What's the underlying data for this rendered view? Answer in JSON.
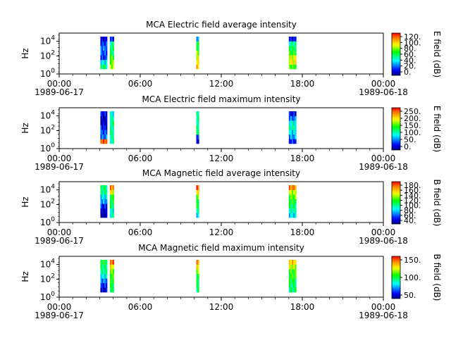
{
  "chart_data": [
    {
      "type": "heatmap",
      "title": "MCA  Electric field average intensity",
      "ylabel": "Hz",
      "yticks": [
        {
          "base": "10",
          "exp": "0"
        },
        {
          "base": "10",
          "exp": "2"
        },
        {
          "base": "10",
          "exp": "4"
        }
      ],
      "xticks": [
        "00:00",
        "06:00",
        "12:00",
        "18:00",
        "00:00"
      ],
      "xdates": [
        "1989-06-17",
        "1989-06-18"
      ],
      "colorbar": {
        "label": "E field (dB)",
        "ticks": [
          "120.",
          "100.",
          "80.",
          "60.",
          "40.",
          "20.",
          "0."
        ],
        "range": [
          0,
          130
        ]
      },
      "bursts": [
        {
          "start_hours": 3.05,
          "end_hours": 3.55,
          "profile": [
            10,
            20,
            30,
            25,
            20,
            45,
            60
          ]
        },
        {
          "start_hours": 3.75,
          "end_hours": 4.05,
          "profile": [
            20,
            55,
            60,
            60,
            75,
            80,
            85
          ]
        },
        {
          "start_hours": 10.15,
          "end_hours": 10.35,
          "profile": [
            30,
            70,
            70,
            80,
            90,
            100,
            105
          ]
        },
        {
          "start_hours": 17.0,
          "end_hours": 17.55,
          "profile": [
            15,
            55,
            65,
            70,
            90,
            95,
            75
          ]
        }
      ]
    },
    {
      "type": "heatmap",
      "title": "MCA  Electric field maximum intensity",
      "ylabel": "Hz",
      "yticks": [
        {
          "base": "10",
          "exp": "0"
        },
        {
          "base": "10",
          "exp": "2"
        },
        {
          "base": "10",
          "exp": "4"
        }
      ],
      "xticks": [
        "00:00",
        "06:00",
        "12:00",
        "18:00",
        "00:00"
      ],
      "xdates": [
        "1989-06-17",
        "1989-06-18"
      ],
      "colorbar": {
        "label": "E field (dB)",
        "ticks": [
          "250.",
          "200.",
          "150.",
          "100.",
          "50.",
          "0."
        ],
        "range": [
          0,
          270
        ]
      },
      "bursts": [
        {
          "start_hours": 3.05,
          "end_hours": 3.55,
          "profile": [
            30,
            15,
            20,
            35,
            50,
            60,
            250
          ]
        },
        {
          "start_hours": 3.75,
          "end_hours": 4.05,
          "profile": [
            95,
            110,
            120,
            110,
            120,
            115,
            110
          ]
        },
        {
          "start_hours": 10.15,
          "end_hours": 10.35,
          "profile": [
            110,
            115,
            120,
            125,
            120,
            40,
            30
          ]
        },
        {
          "start_hours": 17.0,
          "end_hours": 17.55,
          "profile": [
            30,
            60,
            100,
            110,
            90,
            70,
            40
          ]
        }
      ]
    },
    {
      "type": "heatmap",
      "title": "MCA  Magnetic field average intensity",
      "ylabel": "Hz",
      "yticks": [
        {
          "base": "10",
          "exp": "0"
        },
        {
          "base": "10",
          "exp": "2"
        },
        {
          "base": "10",
          "exp": "4"
        }
      ],
      "xticks": [
        "00:00",
        "06:00",
        "12:00",
        "18:00",
        "00:00"
      ],
      "xdates": [
        "1989-06-17",
        "1989-06-18"
      ],
      "colorbar": {
        "label": "B field (dB)",
        "ticks": [
          "180.",
          "160.",
          "140.",
          "120.",
          "100.",
          "80.",
          "60.",
          "40."
        ],
        "range": [
          40,
          190
        ]
      },
      "bursts": [
        {
          "start_hours": 3.05,
          "end_hours": 3.55,
          "profile": [
            110,
            105,
            90,
            80,
            60,
            50,
            45
          ]
        },
        {
          "start_hours": 3.75,
          "end_hours": 4.05,
          "profile": [
            170,
            150,
            120,
            115,
            110,
            95,
            100
          ]
        },
        {
          "start_hours": 10.15,
          "end_hours": 10.35,
          "profile": [
            180,
            150,
            130,
            120,
            115,
            100,
            90
          ]
        },
        {
          "start_hours": 17.0,
          "end_hours": 17.55,
          "profile": [
            170,
            140,
            130,
            120,
            110,
            100,
            90
          ]
        }
      ]
    },
    {
      "type": "heatmap",
      "title": "MCA  Magnetic field maximum intensity",
      "ylabel": "Hz",
      "yticks": [
        {
          "base": "10",
          "exp": "0"
        },
        {
          "base": "10",
          "exp": "2"
        },
        {
          "base": "10",
          "exp": "4"
        }
      ],
      "xticks": [
        "00:00",
        "06:00",
        "12:00",
        "18:00",
        "00:00"
      ],
      "xdates": [
        "1989-06-17",
        "1989-06-18"
      ],
      "colorbar": {
        "label": "B field (dB)",
        "ticks": [
          "150.",
          "100.",
          "50."
        ],
        "range": [
          15,
          200
        ]
      },
      "bursts": [
        {
          "start_hours": 3.05,
          "end_hours": 3.55,
          "profile": [
            110,
            100,
            95,
            80,
            60,
            40,
            30
          ]
        },
        {
          "start_hours": 3.75,
          "end_hours": 4.05,
          "profile": [
            180,
            150,
            130,
            120,
            115,
            110,
            105
          ]
        },
        {
          "start_hours": 10.15,
          "end_hours": 10.35,
          "profile": [
            180,
            150,
            130,
            115,
            110,
            100,
            100
          ]
        },
        {
          "start_hours": 17.0,
          "end_hours": 17.55,
          "profile": [
            160,
            140,
            120,
            120,
            110,
            100,
            100
          ]
        }
      ]
    }
  ]
}
